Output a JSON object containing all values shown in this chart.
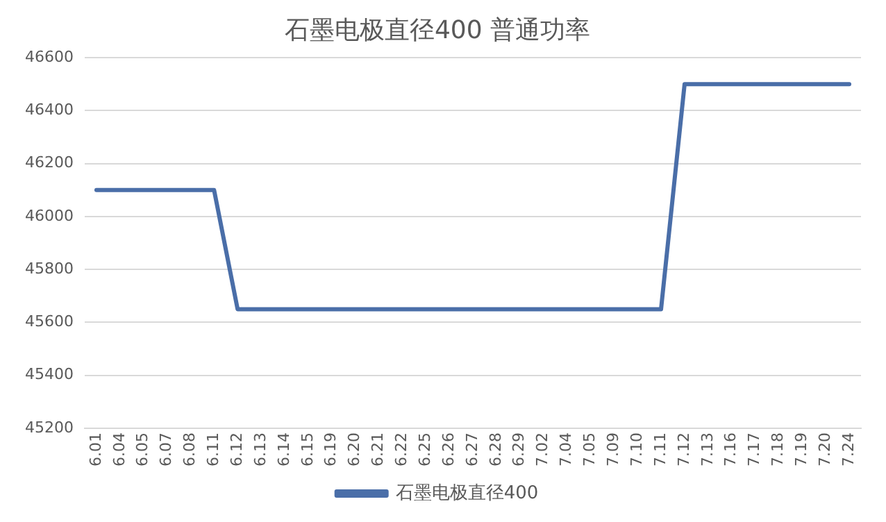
{
  "chart_data": {
    "type": "line",
    "title": "石墨电极直径400 普通功率",
    "categories": [
      "6.01",
      "6.04",
      "6.05",
      "6.07",
      "6.08",
      "6.11",
      "6.12",
      "6.13",
      "6.14",
      "6.15",
      "6.19",
      "6.20",
      "6.21",
      "6.22",
      "6.25",
      "6.26",
      "6.27",
      "6.28",
      "6.29",
      "7.02",
      "7.04",
      "7.05",
      "7.09",
      "7.10",
      "7.11",
      "7.12",
      "7.13",
      "7.16",
      "7.17",
      "7.18",
      "7.19",
      "7.20",
      "7.24"
    ],
    "series": [
      {
        "name": "石墨电极直径400",
        "color": "#4a6ea8",
        "values": [
          46100,
          46100,
          46100,
          46100,
          46100,
          46100,
          45650,
          45650,
          45650,
          45650,
          45650,
          45650,
          45650,
          45650,
          45650,
          45650,
          45650,
          45650,
          45650,
          45650,
          45650,
          45650,
          45650,
          45650,
          45650,
          46500,
          46500,
          46500,
          46500,
          46500,
          46500,
          46500,
          46500
        ]
      }
    ],
    "ylim": [
      45200,
      46600
    ],
    "yticks": [
      45200,
      45400,
      45600,
      45800,
      46000,
      46200,
      46400,
      46600
    ],
    "grid": "y",
    "legend": "bottom",
    "marker": "none",
    "line_style": "solid"
  }
}
